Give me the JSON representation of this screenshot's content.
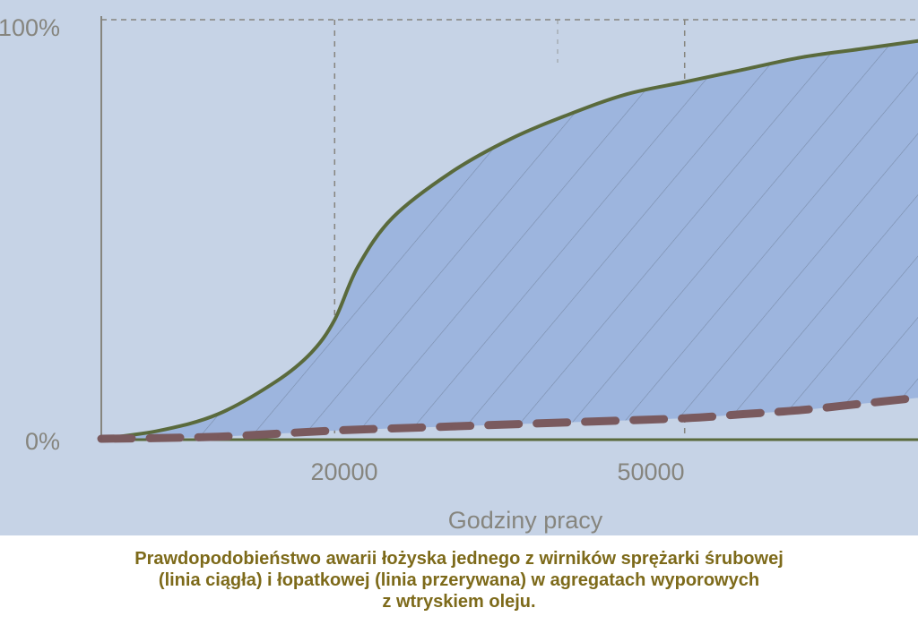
{
  "chart_data": {
    "type": "area",
    "title": "",
    "xlabel": "Godziny pracy",
    "ylabel": "",
    "x_ticks": [
      "20000",
      "50000"
    ],
    "y_ticks": [
      "0%",
      "100%"
    ],
    "ylim": [
      0,
      100
    ],
    "grid": "dashed vertical at 20000 and 50000, dashed top line at 100%",
    "series": [
      {
        "line": "solid",
        "x": [
          0,
          5000,
          10000,
          15000,
          18000,
          20000,
          22000,
          25000,
          30000,
          35000,
          40000,
          45000,
          50000,
          55000,
          60000,
          65000,
          70000
        ],
        "y": [
          0,
          2,
          6,
          14,
          21,
          29,
          42,
          54,
          65,
          73,
          79,
          84,
          87,
          90,
          93,
          95,
          97
        ]
      },
      {
        "line": "dashed",
        "x": [
          0,
          10000,
          20000,
          30000,
          40000,
          50000,
          55000,
          60000,
          65000,
          70000
        ],
        "y": [
          0,
          0.5,
          2,
          3,
          4,
          5,
          6,
          7,
          8.5,
          10
        ]
      }
    ],
    "colors": {
      "background": "#c6d3e6",
      "area_fill": "#9db5de",
      "solid_line": "#5a6a3c",
      "dashed_line": "#7a5a5e",
      "text": "#86857e"
    }
  },
  "caption": {
    "line1": "Prawdopodobieństwo awarii łożyska jednego z wirników sprężarki śrubowej",
    "line2": "(linia ciągła) i łopatkowej (linia przerywana) w agregatach wyporowych",
    "line3": "z wtryskiem oleju."
  }
}
